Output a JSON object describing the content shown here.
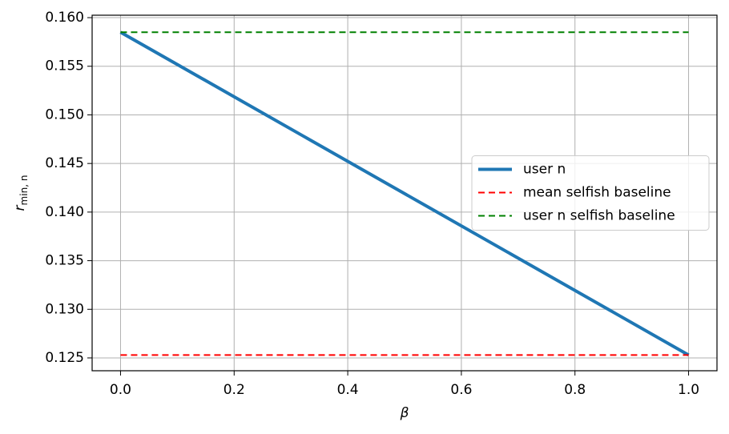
{
  "chart_data": {
    "type": "line",
    "xlabel": "β",
    "ylabel": {
      "base": "r",
      "subscript": "min, n"
    },
    "x": [
      0,
      1
    ],
    "series": [
      {
        "name": "user n",
        "color": "#1f77b4",
        "dash": "solid",
        "width": 4,
        "values": [
          0.1585,
          0.1253
        ]
      },
      {
        "name": "mean selfish baseline",
        "color": "#ff0000",
        "dash": "dashed",
        "width": 2,
        "values": [
          0.1253,
          0.1253
        ]
      },
      {
        "name": "user n selfish baseline",
        "color": "#008000",
        "dash": "dashed",
        "width": 2,
        "values": [
          0.1585,
          0.1585
        ]
      }
    ],
    "xlim": [
      -0.05,
      1.05
    ],
    "ylim": [
      0.12368,
      0.16025
    ],
    "xticks": [
      {
        "value": 0,
        "label": "0.0"
      },
      0.2,
      0.4,
      0.6,
      0.8,
      {
        "value": 1,
        "label": "1.0"
      }
    ],
    "yticks": [
      0.125,
      {
        "value": 0.13,
        "label": "0.130"
      },
      0.135,
      {
        "value": 0.14,
        "label": "0.140"
      },
      0.145,
      {
        "value": 0.15,
        "label": "0.150"
      },
      0.155,
      {
        "value": 0.16,
        "label": "0.160"
      }
    ],
    "grid": true,
    "legend": "center right"
  }
}
